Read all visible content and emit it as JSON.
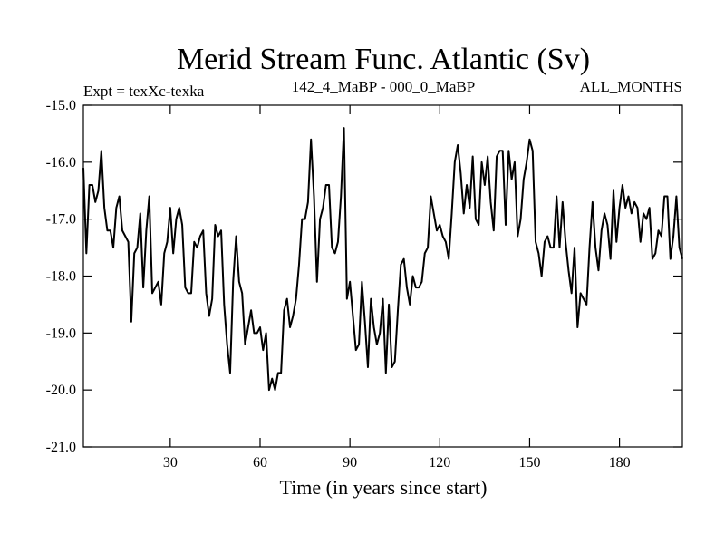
{
  "chart_data": {
    "type": "line",
    "title": "Merid Stream Func. Atlantic (Sv)",
    "left_string": "Expt = texXc-texka",
    "center_string": "142_4_MaBP - 000_0_MaBP",
    "right_string": "ALL_MONTHS",
    "xlabel": "Time (in years since start)",
    "ylabel": "",
    "xlim": [
      1,
      201
    ],
    "ylim": [
      -21.0,
      -15.0
    ],
    "xticks": [
      30,
      60,
      90,
      120,
      150,
      180
    ],
    "xtick_labels": [
      "30",
      "60",
      "90",
      "120",
      "150",
      "180"
    ],
    "yticks": [
      -15.0,
      -16.0,
      -17.0,
      -18.0,
      -19.0,
      -20.0,
      -21.0
    ],
    "ytick_labels": [
      "-15.0",
      "-16.0",
      "-17.0",
      "-18.0",
      "-19.0",
      "-20.0",
      "-21.0"
    ],
    "grid": false,
    "line_color": "#000000",
    "series": [
      {
        "x_start": 1,
        "x_step": 1,
        "values": [
          -16.1,
          -17.6,
          -16.4,
          -16.4,
          -16.7,
          -16.5,
          -15.8,
          -16.8,
          -17.2,
          -17.2,
          -17.5,
          -16.8,
          -16.6,
          -17.2,
          -17.3,
          -17.4,
          -18.8,
          -17.6,
          -17.5,
          -16.9,
          -18.2,
          -17.2,
          -16.6,
          -18.3,
          -18.2,
          -18.1,
          -18.5,
          -17.6,
          -17.4,
          -16.8,
          -17.6,
          -17.0,
          -16.8,
          -17.1,
          -18.2,
          -18.3,
          -18.3,
          -17.4,
          -17.5,
          -17.3,
          -17.2,
          -18.3,
          -18.7,
          -18.4,
          -17.1,
          -17.3,
          -17.2,
          -18.5,
          -19.2,
          -19.7,
          -18.1,
          -17.3,
          -18.1,
          -18.3,
          -19.2,
          -18.9,
          -18.6,
          -19.0,
          -19.0,
          -18.9,
          -19.3,
          -19.0,
          -20.0,
          -19.8,
          -20.0,
          -19.7,
          -19.7,
          -18.6,
          -18.4,
          -18.9,
          -18.7,
          -18.4,
          -17.8,
          -17.0,
          -17.0,
          -16.7,
          -15.6,
          -16.6,
          -18.1,
          -17.0,
          -16.8,
          -16.4,
          -16.4,
          -17.5,
          -17.6,
          -17.4,
          -16.6,
          -15.4,
          -18.4,
          -18.1,
          -18.7,
          -19.3,
          -19.2,
          -18.1,
          -18.8,
          -19.6,
          -18.4,
          -18.9,
          -19.2,
          -19.0,
          -18.4,
          -19.7,
          -18.5,
          -19.6,
          -19.5,
          -18.6,
          -17.8,
          -17.7,
          -18.2,
          -18.5,
          -18.0,
          -18.2,
          -18.2,
          -18.1,
          -17.6,
          -17.5,
          -16.6,
          -16.9,
          -17.2,
          -17.1,
          -17.3,
          -17.4,
          -17.7,
          -16.9,
          -16.0,
          -15.7,
          -16.2,
          -16.9,
          -16.4,
          -16.8,
          -15.9,
          -17.0,
          -17.1,
          -16.0,
          -16.4,
          -15.9,
          -16.7,
          -17.2,
          -15.9,
          -15.8,
          -15.8,
          -17.1,
          -15.8,
          -16.3,
          -16.0,
          -17.3,
          -17.0,
          -16.3,
          -16.0,
          -15.6,
          -15.8,
          -17.4,
          -17.6,
          -18.0,
          -17.4,
          -17.3,
          -17.5,
          -17.5,
          -16.6,
          -17.5,
          -16.7,
          -17.4,
          -17.9,
          -18.3,
          -17.5,
          -18.9,
          -18.3,
          -18.4,
          -18.5,
          -17.5,
          -16.7,
          -17.5,
          -17.9,
          -17.2,
          -16.9,
          -17.1,
          -17.7,
          -16.5,
          -17.4,
          -16.8,
          -16.4,
          -16.8,
          -16.6,
          -16.9,
          -16.7,
          -16.8,
          -17.4,
          -16.9,
          -17.0,
          -16.8,
          -17.7,
          -17.6,
          -17.2,
          -17.3,
          -16.6,
          -16.6,
          -17.7,
          -17.3,
          -16.6,
          -17.5,
          -17.7
        ]
      }
    ]
  }
}
